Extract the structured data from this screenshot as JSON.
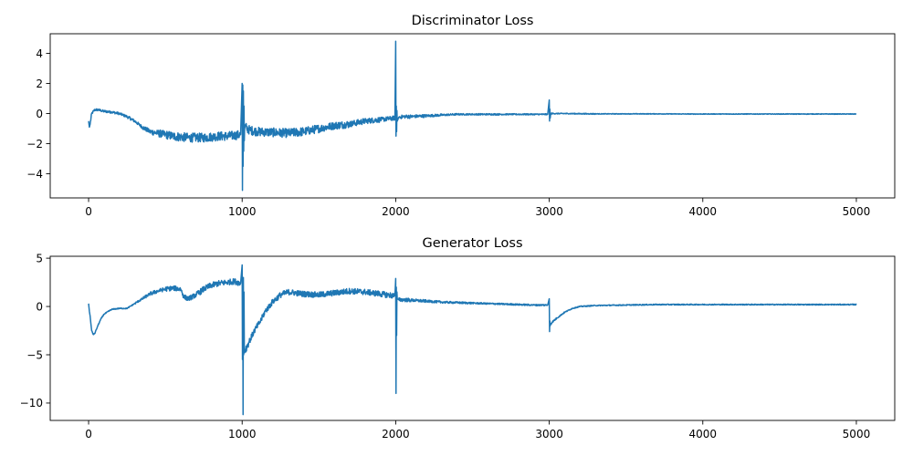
{
  "chart_data": [
    {
      "type": "line",
      "title": "Discriminator Loss",
      "xlabel": "",
      "ylabel": "",
      "xlim": [
        -250,
        5250
      ],
      "ylim": [
        -5.6,
        5.3
      ],
      "xticks": [
        0,
        1000,
        2000,
        3000,
        4000,
        5000
      ],
      "yticks": [
        -4,
        -2,
        0,
        2,
        4
      ],
      "grid": false,
      "color": "#1f77b4",
      "series": [
        {
          "x": [
            0,
            5,
            10,
            20,
            40,
            60,
            80,
            100,
            150,
            200,
            250,
            300,
            350,
            400,
            450,
            500,
            550,
            600,
            650,
            700,
            750,
            800,
            850,
            900,
            950,
            990,
            1000,
            1002,
            1004,
            1006,
            1008,
            1010,
            1012,
            1014,
            1016,
            1020,
            1030,
            1050,
            1100,
            1200,
            1300,
            1400,
            1500,
            1600,
            1700,
            1800,
            1900,
            1995,
            2000,
            2002,
            2004,
            2006,
            2008,
            2010,
            2020,
            2050,
            2100,
            2200,
            2300,
            2400,
            2500,
            2600,
            2700,
            2800,
            2900,
            2990,
            3000,
            3002,
            3004,
            3006,
            3010,
            3030,
            3100,
            3300,
            3500,
            3700,
            3900,
            4100,
            4300,
            4500,
            4700,
            4900,
            5000
          ],
          "values": [
            -0.5,
            -0.9,
            -0.7,
            0.0,
            0.25,
            0.25,
            0.2,
            0.15,
            0.1,
            0.0,
            -0.2,
            -0.5,
            -0.9,
            -1.2,
            -1.3,
            -1.4,
            -1.5,
            -1.55,
            -1.6,
            -1.6,
            -1.6,
            -1.55,
            -1.5,
            -1.5,
            -1.45,
            -1.4,
            2.0,
            -5.1,
            1.9,
            -3.5,
            1.5,
            -2.5,
            0.5,
            -1.8,
            -1.0,
            -0.8,
            -1.0,
            -1.1,
            -1.2,
            -1.25,
            -1.3,
            -1.2,
            -1.0,
            -0.8,
            -0.7,
            -0.5,
            -0.4,
            -0.3,
            4.8,
            -1.5,
            0.5,
            -1.2,
            0.2,
            -0.5,
            -0.25,
            -0.2,
            -0.2,
            -0.15,
            -0.1,
            -0.05,
            -0.05,
            -0.05,
            -0.05,
            -0.05,
            -0.05,
            -0.05,
            0.9,
            -0.5,
            0.3,
            -0.3,
            0.0,
            0.0,
            0.0,
            -0.02,
            -0.02,
            -0.02,
            -0.03,
            -0.03,
            -0.03,
            -0.03,
            -0.03,
            -0.03,
            -0.03
          ],
          "noise": [
            0.35,
            0.2,
            0.2,
            0.1,
            0.08,
            0.08,
            0.08,
            0.08,
            0.08,
            0.08,
            0.1,
            0.1,
            0.15,
            0.2,
            0.25,
            0.28,
            0.3,
            0.3,
            0.3,
            0.3,
            0.3,
            0.3,
            0.3,
            0.3,
            0.3,
            0.3,
            0,
            0,
            0,
            0,
            0,
            0,
            0,
            0,
            0.3,
            0.3,
            0.3,
            0.3,
            0.3,
            0.3,
            0.3,
            0.3,
            0.28,
            0.25,
            0.25,
            0.2,
            0.18,
            0.15,
            0,
            0,
            0,
            0,
            0,
            0,
            0.12,
            0.12,
            0.12,
            0.1,
            0.08,
            0.06,
            0.05,
            0.05,
            0.05,
            0.04,
            0.04,
            0.04,
            0,
            0,
            0,
            0,
            0.05,
            0.04,
            0.03,
            0.03,
            0.02,
            0.02,
            0.02,
            0.02,
            0.02,
            0.02,
            0.02,
            0.02,
            0.02
          ]
        }
      ]
    },
    {
      "type": "line",
      "title": "Generator Loss",
      "xlabel": "",
      "ylabel": "",
      "xlim": [
        -250,
        5250
      ],
      "ylim": [
        -11.8,
        5.2
      ],
      "xticks": [
        0,
        1000,
        2000,
        3000,
        4000,
        5000
      ],
      "yticks": [
        -10,
        -5,
        0,
        5
      ],
      "grid": false,
      "color": "#1f77b4",
      "series": [
        {
          "x": [
            0,
            5,
            10,
            15,
            20,
            30,
            40,
            50,
            60,
            80,
            100,
            150,
            200,
            250,
            300,
            350,
            400,
            450,
            500,
            550,
            600,
            620,
            650,
            700,
            750,
            800,
            850,
            900,
            950,
            990,
            1000,
            1002,
            1004,
            1006,
            1008,
            1010,
            1012,
            1014,
            1016,
            1020,
            1030,
            1050,
            1080,
            1120,
            1150,
            1200,
            1250,
            1300,
            1350,
            1400,
            1500,
            1600,
            1700,
            1800,
            1900,
            1995,
            2000,
            2002,
            2004,
            2006,
            2008,
            2010,
            2020,
            2050,
            2100,
            2200,
            2300,
            2400,
            2500,
            2600,
            2700,
            2800,
            2900,
            2990,
            3000,
            3002,
            3004,
            3006,
            3010,
            3020,
            3050,
            3100,
            3150,
            3200,
            3300,
            3500,
            3700,
            3900,
            4100,
            4300,
            4500,
            4700,
            4900,
            5000
          ],
          "values": [
            0.3,
            -0.5,
            -1.0,
            -1.8,
            -2.5,
            -2.9,
            -2.8,
            -2.4,
            -2.0,
            -1.3,
            -0.8,
            -0.3,
            -0.2,
            -0.2,
            0.3,
            0.8,
            1.3,
            1.6,
            1.8,
            1.9,
            1.8,
            1.0,
            0.8,
            1.2,
            1.8,
            2.2,
            2.4,
            2.5,
            2.6,
            2.4,
            4.3,
            -5.5,
            2.0,
            -11.2,
            3.0,
            -5.0,
            1.5,
            -4.0,
            -4.8,
            -4.5,
            -4.2,
            -3.5,
            -2.5,
            -1.5,
            -0.5,
            0.5,
            1.2,
            1.5,
            1.4,
            1.3,
            1.2,
            1.4,
            1.6,
            1.5,
            1.3,
            1.1,
            2.9,
            -9.0,
            2.0,
            -3.0,
            1.5,
            0.8,
            0.7,
            0.7,
            0.65,
            0.55,
            0.45,
            0.4,
            0.35,
            0.3,
            0.25,
            0.2,
            0.15,
            0.15,
            0.8,
            -2.6,
            -1.5,
            -2.0,
            -1.8,
            -1.6,
            -1.2,
            -0.6,
            -0.2,
            0.0,
            0.1,
            0.15,
            0.2,
            0.2,
            0.2,
            0.2,
            0.2,
            0.2,
            0.2,
            0.2
          ],
          "noise": [
            0.3,
            0.2,
            0.1,
            0.1,
            0.05,
            0.05,
            0.05,
            0.05,
            0.05,
            0.05,
            0.05,
            0.05,
            0.05,
            0.05,
            0.1,
            0.15,
            0.2,
            0.2,
            0.25,
            0.25,
            0.25,
            0.25,
            0.25,
            0.3,
            0.3,
            0.3,
            0.3,
            0.3,
            0.3,
            0.3,
            0,
            0,
            0,
            0,
            0,
            0,
            0,
            0,
            0.4,
            0.4,
            0.4,
            0.35,
            0.3,
            0.3,
            0.3,
            0.3,
            0.3,
            0.3,
            0.3,
            0.3,
            0.3,
            0.3,
            0.3,
            0.3,
            0.3,
            0.3,
            0,
            0,
            0,
            0,
            0,
            0,
            0.2,
            0.2,
            0.2,
            0.15,
            0.12,
            0.1,
            0.1,
            0.08,
            0.08,
            0.08,
            0.08,
            0.08,
            0,
            0,
            0,
            0,
            0.1,
            0.1,
            0.08,
            0.06,
            0.05,
            0.05,
            0.05,
            0.05,
            0.05,
            0.05,
            0.05,
            0.05,
            0.05,
            0.05,
            0.05,
            0.05
          ]
        }
      ]
    }
  ]
}
